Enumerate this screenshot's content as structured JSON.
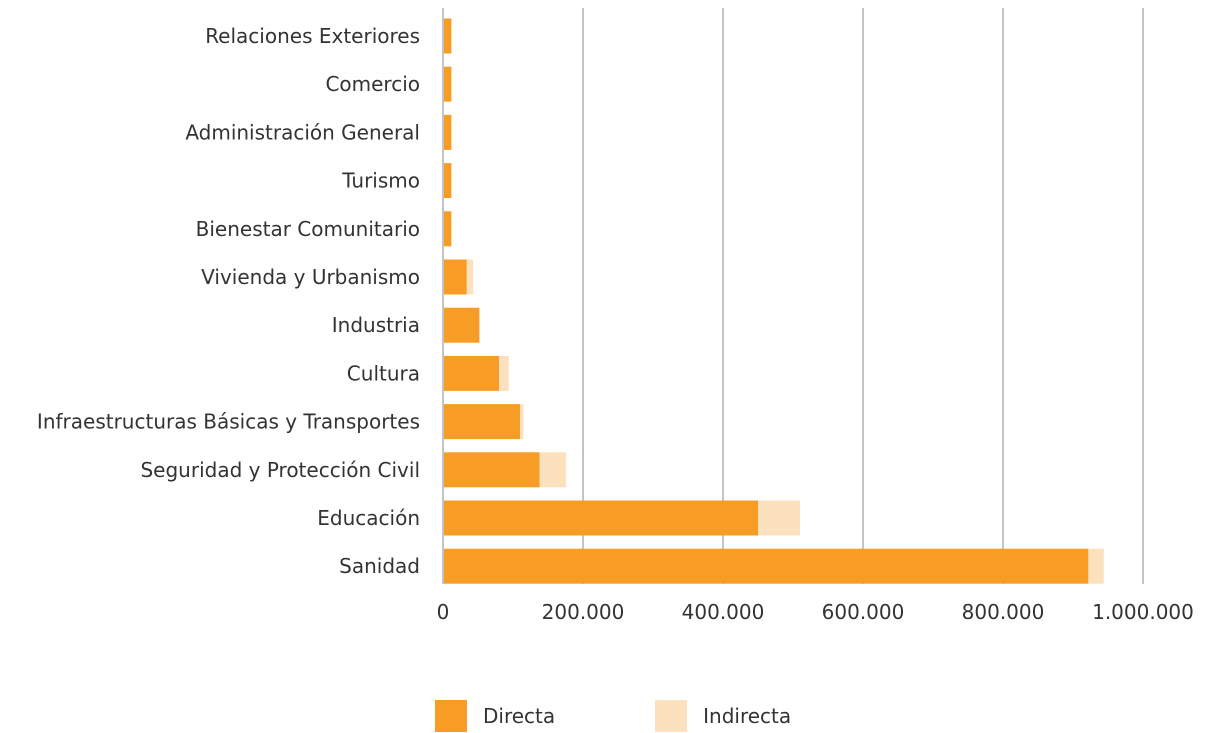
{
  "chart_data": {
    "type": "bar",
    "orientation": "horizontal",
    "stacked": true,
    "categories": [
      "Relaciones Exteriores",
      "Comercio",
      "Administración General",
      "Turismo",
      "Bienestar Comunitario",
      "Vivienda y Urbanismo",
      "Industria",
      "Cultura",
      "Infraestructuras Básicas y Transportes",
      "Seguridad y Protección Civil",
      "Educación",
      "Sanidad"
    ],
    "series": [
      {
        "name": "Directa",
        "color": "#f79d26",
        "values": [
          12000,
          12000,
          12000,
          12000,
          12000,
          34000,
          52000,
          80000,
          110000,
          138000,
          450000,
          922000
        ]
      },
      {
        "name": "Indirecta",
        "color": "#fbe1bd",
        "values": [
          0,
          0,
          0,
          0,
          0,
          9000,
          0,
          14000,
          5000,
          38000,
          60000,
          22000
        ]
      }
    ],
    "xlim": [
      0,
      1000000
    ],
    "xticks": [
      0,
      200000,
      400000,
      600000,
      800000,
      1000000
    ],
    "xtick_labels": [
      "0",
      "200.000",
      "400.000",
      "600.000",
      "800.000",
      "1.000.000"
    ],
    "title": "",
    "xlabel": "",
    "ylabel": "",
    "grid": "vertical",
    "legend_position": "bottom"
  }
}
